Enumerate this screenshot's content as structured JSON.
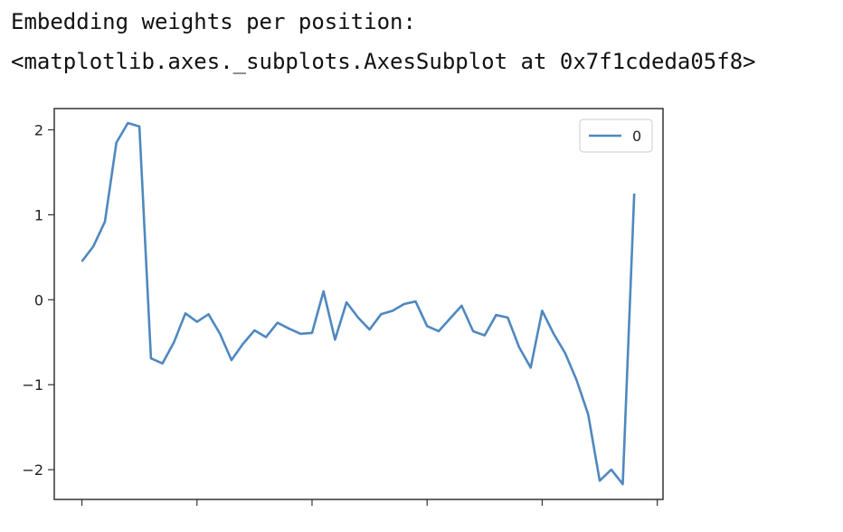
{
  "output": {
    "line1": "Embedding weights per position:",
    "line2": "<matplotlib.axes._subplots.AxesSubplot at 0x7f1cdeda05f8>"
  },
  "colors": {
    "series": "#4f88bf",
    "axes": "#333333",
    "text": "#111111"
  },
  "chart_data": {
    "type": "line",
    "title": "",
    "xlabel": "",
    "ylabel": "",
    "grid": false,
    "legend_position": "top-right",
    "ylim": [
      -2.35,
      2.25
    ],
    "xlim": [
      -2.4,
      50.5
    ],
    "yticks": [
      2,
      1,
      0,
      -1,
      -2
    ],
    "ytick_labels": [
      "2",
      "1",
      "0",
      "−1",
      "−2"
    ],
    "xticks": [
      0,
      10,
      20,
      30,
      40,
      50
    ],
    "series": [
      {
        "name": "0",
        "values": [
          0.45,
          0.63,
          0.92,
          1.85,
          2.08,
          2.04,
          -0.69,
          -0.75,
          -0.5,
          -0.16,
          -0.26,
          -0.17,
          -0.4,
          -0.71,
          -0.52,
          -0.36,
          -0.44,
          -0.27,
          -0.34,
          -0.4,
          -0.39,
          0.1,
          -0.47,
          -0.03,
          -0.21,
          -0.35,
          -0.17,
          -0.13,
          -0.05,
          -0.02,
          -0.31,
          -0.37,
          -0.22,
          -0.07,
          -0.37,
          -0.42,
          -0.18,
          -0.21,
          -0.56,
          -0.8,
          -0.13,
          -0.4,
          -0.63,
          -0.95,
          -1.35,
          -2.13,
          -2.0,
          -2.17,
          1.25
        ]
      }
    ]
  }
}
